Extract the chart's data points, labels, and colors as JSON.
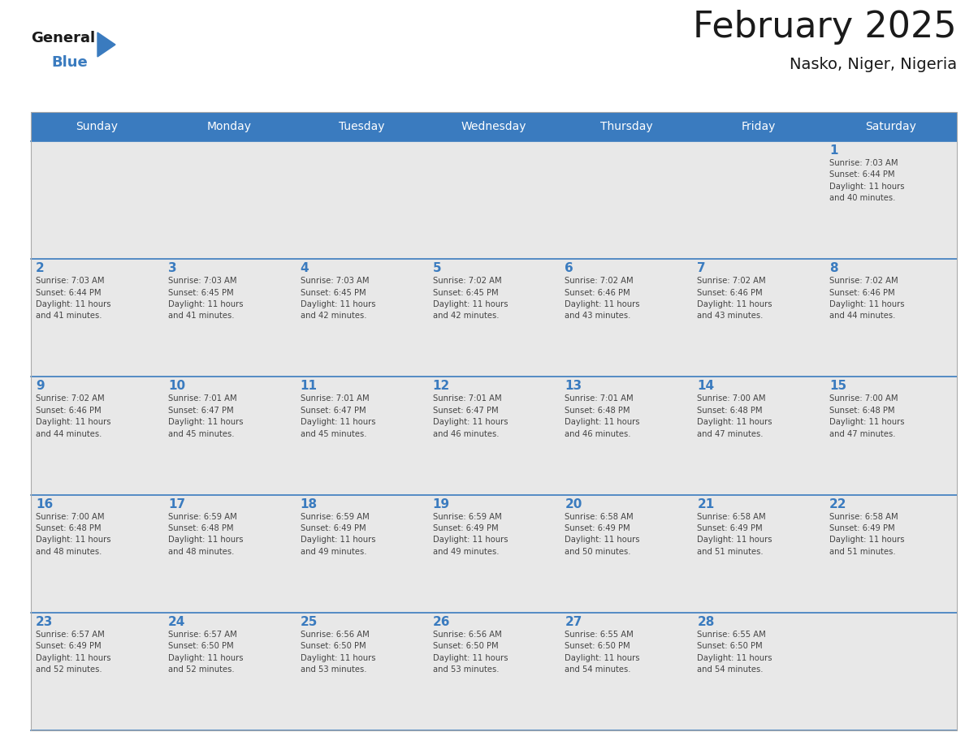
{
  "title": "February 2025",
  "subtitle": "Nasko, Niger, Nigeria",
  "header_bg_color": "#3a7bbf",
  "header_text_color": "#ffffff",
  "cell_bg_light": "#e8e8e8",
  "cell_bg_white": "#ffffff",
  "day_number_color": "#3a7bbf",
  "text_color": "#444444",
  "line_color": "#3a7bbf",
  "border_color": "#aaaaaa",
  "days_of_week": [
    "Sunday",
    "Monday",
    "Tuesday",
    "Wednesday",
    "Thursday",
    "Friday",
    "Saturday"
  ],
  "weeks": [
    [
      {
        "day": null,
        "info": null
      },
      {
        "day": null,
        "info": null
      },
      {
        "day": null,
        "info": null
      },
      {
        "day": null,
        "info": null
      },
      {
        "day": null,
        "info": null
      },
      {
        "day": null,
        "info": null
      },
      {
        "day": 1,
        "info": "Sunrise: 7:03 AM\nSunset: 6:44 PM\nDaylight: 11 hours\nand 40 minutes."
      }
    ],
    [
      {
        "day": 2,
        "info": "Sunrise: 7:03 AM\nSunset: 6:44 PM\nDaylight: 11 hours\nand 41 minutes."
      },
      {
        "day": 3,
        "info": "Sunrise: 7:03 AM\nSunset: 6:45 PM\nDaylight: 11 hours\nand 41 minutes."
      },
      {
        "day": 4,
        "info": "Sunrise: 7:03 AM\nSunset: 6:45 PM\nDaylight: 11 hours\nand 42 minutes."
      },
      {
        "day": 5,
        "info": "Sunrise: 7:02 AM\nSunset: 6:45 PM\nDaylight: 11 hours\nand 42 minutes."
      },
      {
        "day": 6,
        "info": "Sunrise: 7:02 AM\nSunset: 6:46 PM\nDaylight: 11 hours\nand 43 minutes."
      },
      {
        "day": 7,
        "info": "Sunrise: 7:02 AM\nSunset: 6:46 PM\nDaylight: 11 hours\nand 43 minutes."
      },
      {
        "day": 8,
        "info": "Sunrise: 7:02 AM\nSunset: 6:46 PM\nDaylight: 11 hours\nand 44 minutes."
      }
    ],
    [
      {
        "day": 9,
        "info": "Sunrise: 7:02 AM\nSunset: 6:46 PM\nDaylight: 11 hours\nand 44 minutes."
      },
      {
        "day": 10,
        "info": "Sunrise: 7:01 AM\nSunset: 6:47 PM\nDaylight: 11 hours\nand 45 minutes."
      },
      {
        "day": 11,
        "info": "Sunrise: 7:01 AM\nSunset: 6:47 PM\nDaylight: 11 hours\nand 45 minutes."
      },
      {
        "day": 12,
        "info": "Sunrise: 7:01 AM\nSunset: 6:47 PM\nDaylight: 11 hours\nand 46 minutes."
      },
      {
        "day": 13,
        "info": "Sunrise: 7:01 AM\nSunset: 6:48 PM\nDaylight: 11 hours\nand 46 minutes."
      },
      {
        "day": 14,
        "info": "Sunrise: 7:00 AM\nSunset: 6:48 PM\nDaylight: 11 hours\nand 47 minutes."
      },
      {
        "day": 15,
        "info": "Sunrise: 7:00 AM\nSunset: 6:48 PM\nDaylight: 11 hours\nand 47 minutes."
      }
    ],
    [
      {
        "day": 16,
        "info": "Sunrise: 7:00 AM\nSunset: 6:48 PM\nDaylight: 11 hours\nand 48 minutes."
      },
      {
        "day": 17,
        "info": "Sunrise: 6:59 AM\nSunset: 6:48 PM\nDaylight: 11 hours\nand 48 minutes."
      },
      {
        "day": 18,
        "info": "Sunrise: 6:59 AM\nSunset: 6:49 PM\nDaylight: 11 hours\nand 49 minutes."
      },
      {
        "day": 19,
        "info": "Sunrise: 6:59 AM\nSunset: 6:49 PM\nDaylight: 11 hours\nand 49 minutes."
      },
      {
        "day": 20,
        "info": "Sunrise: 6:58 AM\nSunset: 6:49 PM\nDaylight: 11 hours\nand 50 minutes."
      },
      {
        "day": 21,
        "info": "Sunrise: 6:58 AM\nSunset: 6:49 PM\nDaylight: 11 hours\nand 51 minutes."
      },
      {
        "day": 22,
        "info": "Sunrise: 6:58 AM\nSunset: 6:49 PM\nDaylight: 11 hours\nand 51 minutes."
      }
    ],
    [
      {
        "day": 23,
        "info": "Sunrise: 6:57 AM\nSunset: 6:49 PM\nDaylight: 11 hours\nand 52 minutes."
      },
      {
        "day": 24,
        "info": "Sunrise: 6:57 AM\nSunset: 6:50 PM\nDaylight: 11 hours\nand 52 minutes."
      },
      {
        "day": 25,
        "info": "Sunrise: 6:56 AM\nSunset: 6:50 PM\nDaylight: 11 hours\nand 53 minutes."
      },
      {
        "day": 26,
        "info": "Sunrise: 6:56 AM\nSunset: 6:50 PM\nDaylight: 11 hours\nand 53 minutes."
      },
      {
        "day": 27,
        "info": "Sunrise: 6:55 AM\nSunset: 6:50 PM\nDaylight: 11 hours\nand 54 minutes."
      },
      {
        "day": 28,
        "info": "Sunrise: 6:55 AM\nSunset: 6:50 PM\nDaylight: 11 hours\nand 54 minutes."
      },
      {
        "day": null,
        "info": null
      }
    ]
  ],
  "fig_width": 11.88,
  "fig_height": 9.18,
  "dpi": 100
}
